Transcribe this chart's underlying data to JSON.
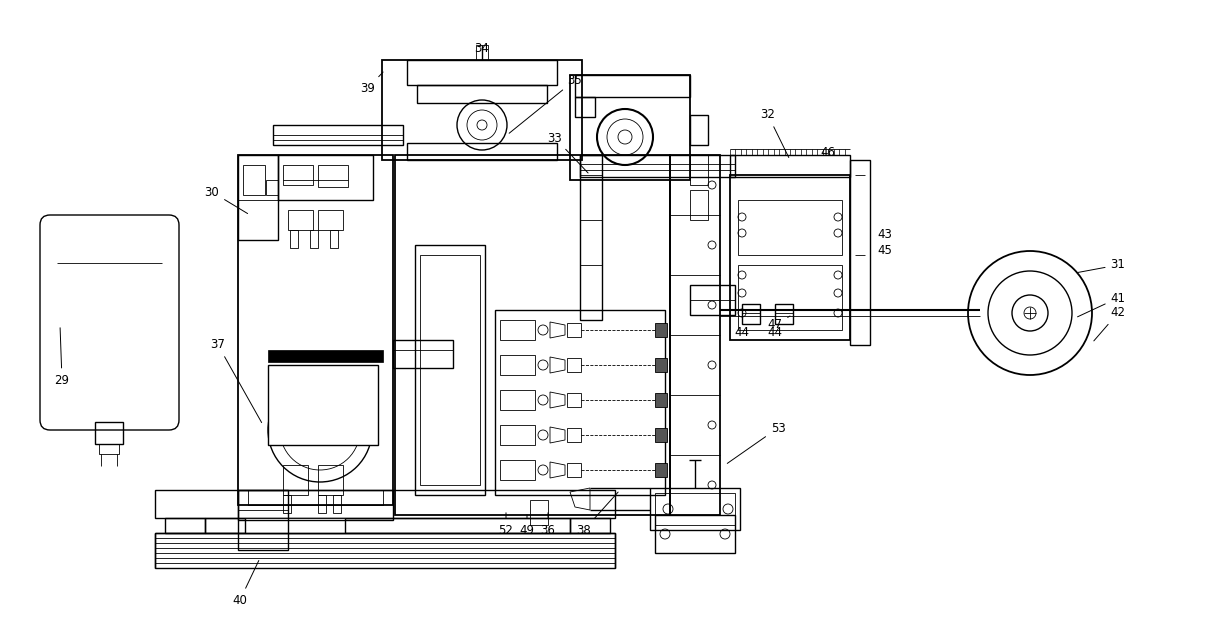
{
  "bg_color": "#ffffff",
  "lc": "#000000",
  "lw": 1.0,
  "tlw": 0.6,
  "figsize": [
    12.24,
    6.33
  ],
  "dpi": 100
}
